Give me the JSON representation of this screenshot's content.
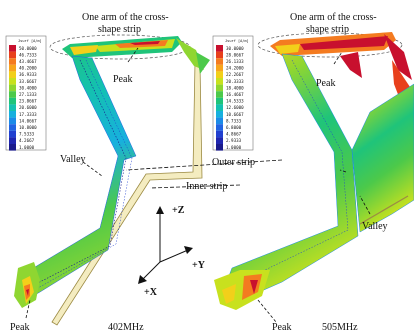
{
  "labels": {
    "arm_left_line1": "One arm of the cross-",
    "arm_left_line2": "shape strip",
    "arm_right_line1": "One arm of the cross-",
    "arm_right_line2": "shape strip",
    "peak_top_left": "Peak",
    "peak_top_right": "Peak",
    "valley_left": "Valley",
    "valley_right": "Valley",
    "outer_strip": "Outer strip",
    "inner_strip": "Inner strip",
    "peak_bottom_left": "Peak",
    "peak_bottom_right": "Peak",
    "freq_left": "402MHz",
    "freq_right": "505MHz",
    "axis_z": "+Z",
    "axis_y": "+Y",
    "axis_x": "+X"
  },
  "legend_left": {
    "title": "Jsurf [A/m]",
    "values": [
      "50.0000",
      "46.7333",
      "43.4667",
      "40.2000",
      "36.9333",
      "33.6667",
      "30.4000",
      "27.1333",
      "23.8667",
      "20.6000",
      "17.3333",
      "14.0667",
      "10.8000",
      "7.5333",
      "4.2667",
      "1.0000"
    ]
  },
  "legend_right": {
    "title": "Jsurf [A/m]",
    "values": [
      "30.0000",
      "28.0667",
      "26.1333",
      "24.2000",
      "22.2667",
      "20.3333",
      "18.4000",
      "16.4667",
      "14.5333",
      "12.6000",
      "10.6667",
      "8.7333",
      "6.8000",
      "4.8667",
      "2.9333",
      "1.0000"
    ]
  },
  "colors": {
    "scale": [
      "#c8102e",
      "#e8401c",
      "#f47b20",
      "#f8a51c",
      "#f2d01a",
      "#c8e11e",
      "#8fd631",
      "#4cc94a",
      "#1fc47a",
      "#14c1b0",
      "#17b0de",
      "#1b8be8",
      "#2064e2",
      "#2140d0",
      "#1f26b0",
      "#1a1a8c"
    ],
    "strip_fill": "#f4ecc0",
    "strip_edge": "#9c8b44"
  }
}
